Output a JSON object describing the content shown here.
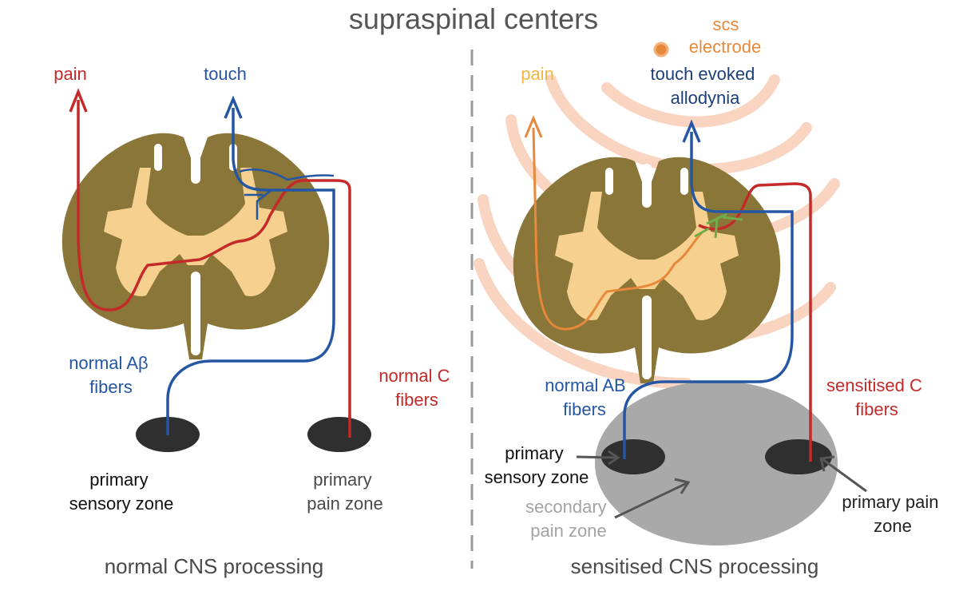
{
  "title": "supraspinal centers",
  "colors": {
    "cord_brown": "#8a7638",
    "gray_matter": "#f6d08e",
    "red": "#c42a2a",
    "blue": "#2556a3",
    "orange": "#e6893b",
    "yellow_pain": "#f0b743",
    "green": "#6dae4a",
    "dark_navy": "#1c3f78",
    "peach_arc": "#f7cdb7",
    "zone_dark": "#2f2f2f",
    "secondary_zone": "#a9a9a9",
    "divider": "#9a9a9a",
    "title_gray": "#555555",
    "caption_gray": "#4a4a4a"
  },
  "left_panel": {
    "pain_label": "pain",
    "touch_label": "touch",
    "abeta_label": [
      "normal Aβ",
      "fibers"
    ],
    "c_label": [
      "normal C",
      "fibers"
    ],
    "sensory_zone_label": [
      "primary",
      "sensory zone"
    ],
    "pain_zone_label": [
      "primary",
      "pain zone"
    ],
    "caption": "normal CNS processing"
  },
  "right_panel": {
    "scs_label": [
      "scs",
      "electrode"
    ],
    "pain_label": "pain",
    "touch_label": [
      "touch evoked",
      "allodynia"
    ],
    "ab_label": [
      "normal AB",
      "fibers"
    ],
    "c_label": [
      "sensitised C",
      "fibers"
    ],
    "sensory_zone_label": [
      "primary",
      "sensory zone"
    ],
    "secondary_zone_label": [
      "secondary",
      "pain zone"
    ],
    "pain_zone_label": [
      "primary pain",
      "zone"
    ],
    "caption": "sensitised CNS processing"
  }
}
